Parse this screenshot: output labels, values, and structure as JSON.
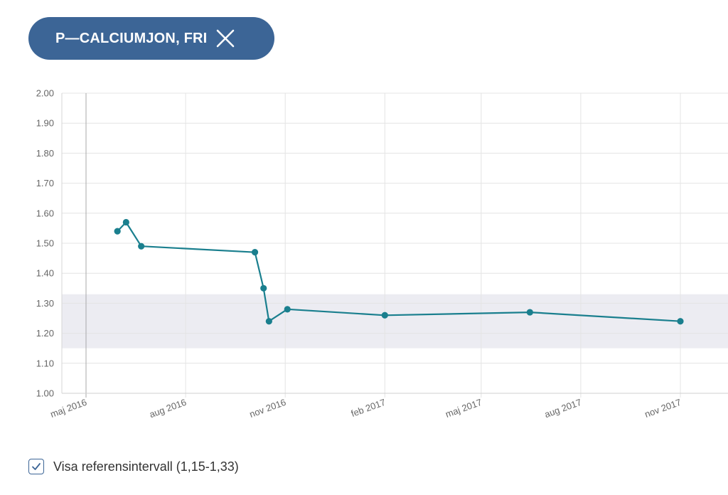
{
  "filter_chip": {
    "label": "P—CALCIUMJON, FRI",
    "close_icon": "close-icon",
    "color": "#3c6596"
  },
  "reference_toggle": {
    "checked": true,
    "label": "Visa referensintervall (1,15-1,33)",
    "icon": "check-icon"
  },
  "chart_data": {
    "type": "line",
    "x_axis_kind": "date",
    "x_ticks": [
      {
        "label": "maj 2016",
        "date": "2016-05-01"
      },
      {
        "label": "aug 2016",
        "date": "2016-08-01"
      },
      {
        "label": "nov 2016",
        "date": "2016-11-01"
      },
      {
        "label": "feb 2017",
        "date": "2017-02-01"
      },
      {
        "label": "maj 2017",
        "date": "2017-05-01"
      },
      {
        "label": "aug 2017",
        "date": "2017-08-01"
      },
      {
        "label": "nov 2017",
        "date": "2017-11-01"
      }
    ],
    "y_ticks": [
      "1.00",
      "1.10",
      "1.20",
      "1.30",
      "1.40",
      "1.50",
      "1.60",
      "1.70",
      "1.80",
      "1.90",
      "2.00"
    ],
    "ylim": [
      1.0,
      2.0
    ],
    "series": [
      {
        "color": "#1a7f8e",
        "points": [
          {
            "date": "2016-05-30",
            "value": 1.54
          },
          {
            "date": "2016-06-07",
            "value": 1.57
          },
          {
            "date": "2016-06-21",
            "value": 1.49
          },
          {
            "date": "2016-10-04",
            "value": 1.47
          },
          {
            "date": "2016-10-12",
            "value": 1.35
          },
          {
            "date": "2016-10-17",
            "value": 1.24
          },
          {
            "date": "2016-11-03",
            "value": 1.28
          },
          {
            "date": "2017-02-01",
            "value": 1.26
          },
          {
            "date": "2017-06-15",
            "value": 1.27
          },
          {
            "date": "2017-11-01",
            "value": 1.24
          }
        ]
      }
    ],
    "reference_band": [
      1.15,
      1.33
    ],
    "reference_band_color": "#ececf2",
    "grid": true,
    "title": "",
    "xlabel": "",
    "ylabel": ""
  }
}
